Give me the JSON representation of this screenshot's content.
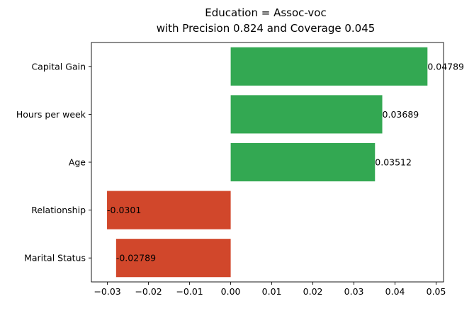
{
  "chart_data": {
    "type": "bar",
    "orientation": "horizontal",
    "title": "Education = Assoc-voc",
    "subtitle": "with Precision 0.824 and Coverage 0.045",
    "xlabel": "",
    "ylabel": "",
    "xlim": [
      -0.0339,
      0.0518
    ],
    "grid": false,
    "legend": "none",
    "categories": [
      "Capital Gain",
      "Hours per week",
      "Age",
      "Relationship",
      "Marital Status"
    ],
    "values": [
      0.04789,
      0.03689,
      0.03512,
      -0.0301,
      -0.02789
    ],
    "value_labels": [
      "0.04789",
      "0.03689",
      "0.03512",
      "-0.0301",
      "-0.02789"
    ],
    "x_ticks": [
      -0.03,
      -0.02,
      -0.01,
      0.0,
      0.01,
      0.02,
      0.03,
      0.04,
      0.05
    ],
    "x_tick_labels": [
      "−0.03",
      "−0.02",
      "−0.01",
      "0.00",
      "0.01",
      "0.02",
      "0.03",
      "0.04",
      "0.05"
    ],
    "colors": {
      "positive": "#33a852",
      "negative": "#d1472b",
      "axis": "#000000"
    }
  }
}
